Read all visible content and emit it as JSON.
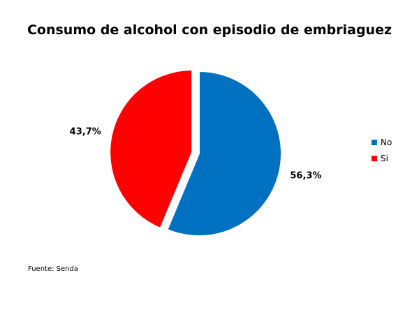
{
  "chart_data": {
    "type": "pie",
    "title": "Consumo de alcohol con episodio de embriaguez",
    "categories": [
      "No",
      "Si"
    ],
    "values": [
      56.3,
      43.7
    ],
    "data_labels": [
      "56,3%",
      "43,7%"
    ],
    "colors": [
      "#0070C0",
      "#FF0000"
    ],
    "exploded": [
      "Si"
    ],
    "legend_position": "right",
    "source": "Fuente: Senda"
  }
}
